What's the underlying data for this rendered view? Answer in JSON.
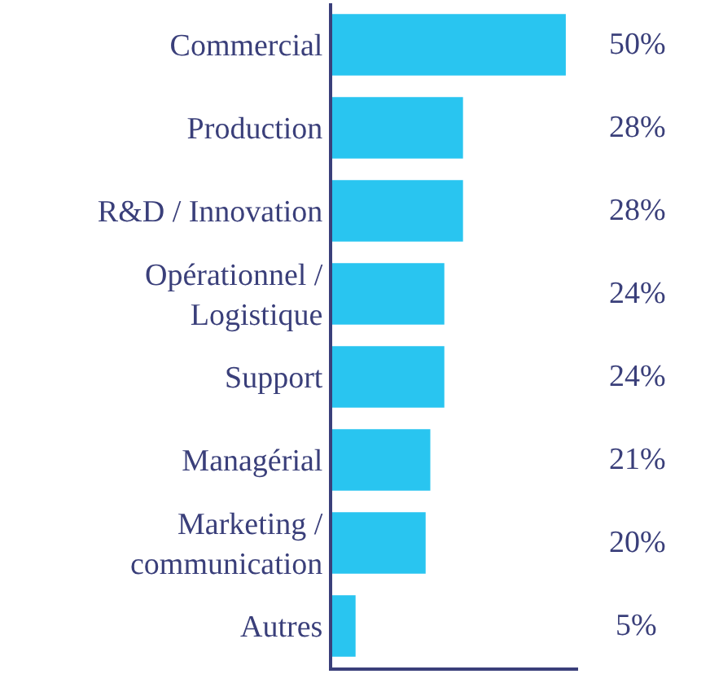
{
  "chart_data": {
    "type": "bar",
    "orientation": "horizontal",
    "data_labels": true,
    "value_labels": [
      "50%",
      "28%",
      "28%",
      "24%",
      "24%",
      "21%",
      "20%",
      "5%"
    ],
    "tick_labels": "y",
    "grid": false,
    "legend": false,
    "categories": [
      "Commercial",
      "Production",
      "R&D / Innovation",
      "Opérationnel / Logistique",
      "Support",
      "Managérial",
      "Marketing / communication",
      "Autres"
    ],
    "values": [
      50,
      28,
      28,
      24,
      24,
      21,
      20,
      5
    ],
    "color": "#29c5f0"
  }
}
